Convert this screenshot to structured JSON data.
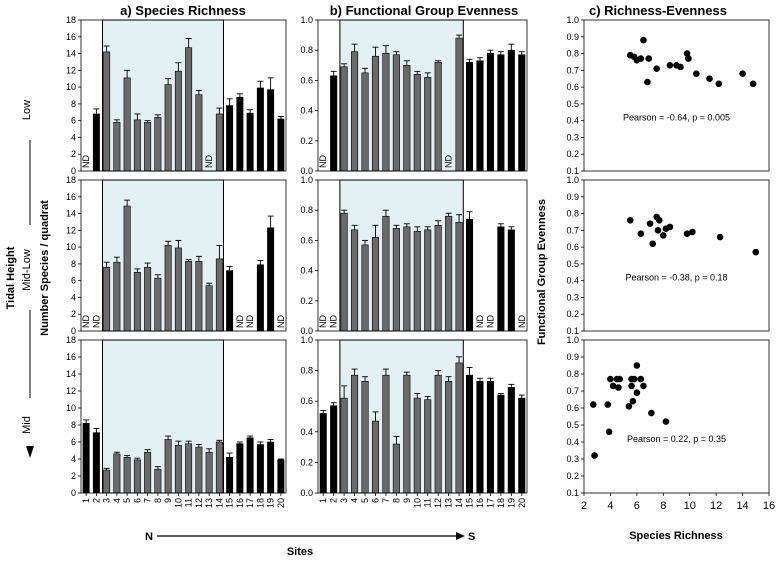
{
  "figure": {
    "y_axis_label": "Number Species / quadrat",
    "x_axis_label": "Sites",
    "tidal_height_label": "Tidal Height",
    "row_labels": [
      "Low",
      "Mid-Low",
      "Mid"
    ],
    "north_label": "N",
    "south_label": "S",
    "evenness_axis_label": "Functional Group Evenness",
    "richness_axis_label": "Species Richness",
    "nd_label": "ND",
    "gray_color": "#6a6a6a",
    "black_color": "#000000",
    "highlight_color": "#e3f1f3"
  },
  "chart_data": [
    {
      "id": "a",
      "type": "bar",
      "title": "a) Species Richness",
      "xlabel": "Sites",
      "ylabel": "Number Species / quadrat",
      "categories": [
        "1",
        "2",
        "3",
        "4",
        "5",
        "6",
        "7",
        "8",
        "9",
        "10",
        "11",
        "12",
        "13",
        "14",
        "15",
        "16",
        "17",
        "18",
        "19",
        "20"
      ],
      "ylim": [
        0,
        18
      ],
      "yticks": [
        0,
        2,
        4,
        6,
        8,
        10,
        12,
        14,
        16,
        18
      ],
      "highlight_sites": [
        3,
        14
      ],
      "rows": [
        {
          "tidal_height": "Low",
          "values": [
            null,
            6.8,
            14.2,
            5.8,
            11.1,
            6.1,
            5.8,
            6.4,
            10.3,
            11.9,
            14.7,
            9.1,
            null,
            6.8,
            7.8,
            8.8,
            6.9,
            9.9,
            9.7,
            6.2
          ],
          "errors": [
            0,
            0.6,
            0.7,
            0.3,
            0.9,
            0.7,
            0.2,
            0.3,
            0.7,
            1.0,
            1.1,
            0.5,
            0,
            0.7,
            0.8,
            0.4,
            0.4,
            0.8,
            1.4,
            0.3
          ]
        },
        {
          "tidal_height": "Mid-Low",
          "values": [
            null,
            null,
            7.6,
            8.2,
            14.9,
            7.0,
            7.6,
            6.3,
            10.2,
            9.9,
            8.3,
            8.3,
            5.4,
            8.6,
            7.2,
            null,
            null,
            7.9,
            12.3,
            null
          ],
          "errors": [
            0,
            0,
            0.6,
            0.6,
            0.7,
            0.4,
            0.5,
            0.4,
            0.5,
            0.9,
            0.2,
            0.6,
            0.3,
            1.6,
            0.5,
            0,
            0,
            0.5,
            1.4,
            0
          ]
        },
        {
          "tidal_height": "Mid",
          "values": [
            8.2,
            7.1,
            2.7,
            4.6,
            4.2,
            3.9,
            4.8,
            2.8,
            6.3,
            5.6,
            5.8,
            5.4,
            4.8,
            6.0,
            4.2,
            5.8,
            6.5,
            5.7,
            6.0,
            3.9
          ],
          "errors": [
            0.4,
            0.5,
            0.2,
            0.2,
            0.2,
            0.2,
            0.3,
            0.3,
            0.4,
            0.5,
            0.3,
            0.3,
            0.4,
            0.2,
            0.5,
            0.2,
            0.2,
            0.3,
            0.3,
            0.1
          ]
        }
      ]
    },
    {
      "id": "b",
      "type": "bar",
      "title": "b) Functional Group Evenness",
      "xlabel": "Sites",
      "ylabel": "",
      "categories": [
        "1",
        "2",
        "3",
        "4",
        "5",
        "6",
        "7",
        "8",
        "9",
        "10",
        "11",
        "12",
        "13",
        "14",
        "15",
        "16",
        "17",
        "18",
        "19",
        "20"
      ],
      "ylim": [
        0,
        1.0
      ],
      "yticks": [
        0.0,
        0.2,
        0.4,
        0.6,
        0.8,
        1.0
      ],
      "highlight_sites": [
        3,
        14
      ],
      "rows": [
        {
          "tidal_height": "Low",
          "values": [
            null,
            0.63,
            0.69,
            0.79,
            0.65,
            0.76,
            0.78,
            0.77,
            0.7,
            0.64,
            0.62,
            0.72,
            null,
            0.88,
            0.72,
            0.73,
            0.78,
            0.77,
            0.8,
            0.77
          ],
          "errors": [
            0,
            0.03,
            0.02,
            0.05,
            0.03,
            0.06,
            0.05,
            0.02,
            0.03,
            0.02,
            0.03,
            0.01,
            0,
            0.02,
            0.02,
            0.02,
            0.02,
            0.02,
            0.04,
            0.02
          ]
        },
        {
          "tidal_height": "Mid-Low",
          "values": [
            null,
            null,
            0.78,
            0.67,
            0.57,
            0.62,
            0.76,
            0.68,
            0.69,
            0.66,
            0.67,
            0.7,
            0.76,
            0.72,
            0.74,
            null,
            null,
            0.69,
            0.67,
            null
          ],
          "errors": [
            0,
            0,
            0.02,
            0.03,
            0.03,
            0.08,
            0.04,
            0.02,
            0.02,
            0.03,
            0.02,
            0.03,
            0.02,
            0.05,
            0.05,
            0,
            0,
            0.02,
            0.02,
            0
          ]
        },
        {
          "tidal_height": "Mid",
          "values": [
            0.52,
            0.57,
            0.62,
            0.77,
            0.73,
            0.47,
            0.77,
            0.32,
            0.77,
            0.62,
            0.61,
            0.77,
            0.73,
            0.85,
            0.77,
            0.73,
            0.73,
            0.64,
            0.69,
            0.62
          ],
          "errors": [
            0.02,
            0.02,
            0.08,
            0.04,
            0.03,
            0.06,
            0.04,
            0.05,
            0.02,
            0.03,
            0.02,
            0.03,
            0.03,
            0.04,
            0.05,
            0.02,
            0.02,
            0.01,
            0.02,
            0.02
          ]
        }
      ]
    },
    {
      "id": "c",
      "type": "scatter",
      "title": "c) Richness-Evenness",
      "xlabel": "Species Richness",
      "ylabel": "Functional Group Evenness",
      "xlim": [
        2,
        16
      ],
      "ylim": [
        0.1,
        1.0
      ],
      "xticks": [
        2,
        4,
        6,
        8,
        10,
        12,
        14,
        16
      ],
      "yticks": [
        0.1,
        0.2,
        0.3,
        0.4,
        0.5,
        0.6,
        0.7,
        0.8,
        0.9,
        1.0
      ],
      "panels": [
        {
          "tidal_height": "Low",
          "annotation": "Pearson = -0.64, p = 0.005",
          "points": [
            [
              5.5,
              0.79
            ],
            [
              5.8,
              0.78
            ],
            [
              6.0,
              0.76
            ],
            [
              6.3,
              0.77
            ],
            [
              6.5,
              0.88
            ],
            [
              6.8,
              0.63
            ],
            [
              6.9,
              0.77
            ],
            [
              7.5,
              0.71
            ],
            [
              8.5,
              0.73
            ],
            [
              9.0,
              0.73
            ],
            [
              9.3,
              0.72
            ],
            [
              9.8,
              0.8
            ],
            [
              9.9,
              0.77
            ],
            [
              10.5,
              0.68
            ],
            [
              11.5,
              0.65
            ],
            [
              12.2,
              0.62
            ],
            [
              14.0,
              0.68
            ],
            [
              14.8,
              0.62
            ]
          ]
        },
        {
          "tidal_height": "Mid-Low",
          "annotation": "Pearson = -0.38, p = 0.18",
          "points": [
            [
              5.5,
              0.76
            ],
            [
              6.3,
              0.68
            ],
            [
              7.0,
              0.74
            ],
            [
              7.2,
              0.62
            ],
            [
              7.5,
              0.78
            ],
            [
              7.6,
              0.7
            ],
            [
              7.7,
              0.76
            ],
            [
              8.0,
              0.67
            ],
            [
              8.2,
              0.71
            ],
            [
              8.5,
              0.72
            ],
            [
              9.8,
              0.68
            ],
            [
              10.2,
              0.69
            ],
            [
              12.3,
              0.66
            ],
            [
              15.0,
              0.57
            ]
          ]
        },
        {
          "tidal_height": "Mid",
          "annotation": "Pearson = 0.22, p = 0.35",
          "points": [
            [
              2.7,
              0.62
            ],
            [
              2.8,
              0.32
            ],
            [
              3.8,
              0.62
            ],
            [
              3.9,
              0.46
            ],
            [
              4.0,
              0.77
            ],
            [
              4.2,
              0.73
            ],
            [
              4.5,
              0.77
            ],
            [
              4.6,
              0.72
            ],
            [
              4.7,
              0.77
            ],
            [
              5.4,
              0.61
            ],
            [
              5.6,
              0.77
            ],
            [
              5.6,
              0.73
            ],
            [
              5.7,
              0.64
            ],
            [
              5.8,
              0.77
            ],
            [
              6.0,
              0.85
            ],
            [
              6.0,
              0.69
            ],
            [
              6.3,
              0.77
            ],
            [
              6.5,
              0.73
            ],
            [
              7.1,
              0.57
            ],
            [
              8.2,
              0.52
            ]
          ]
        }
      ]
    }
  ]
}
